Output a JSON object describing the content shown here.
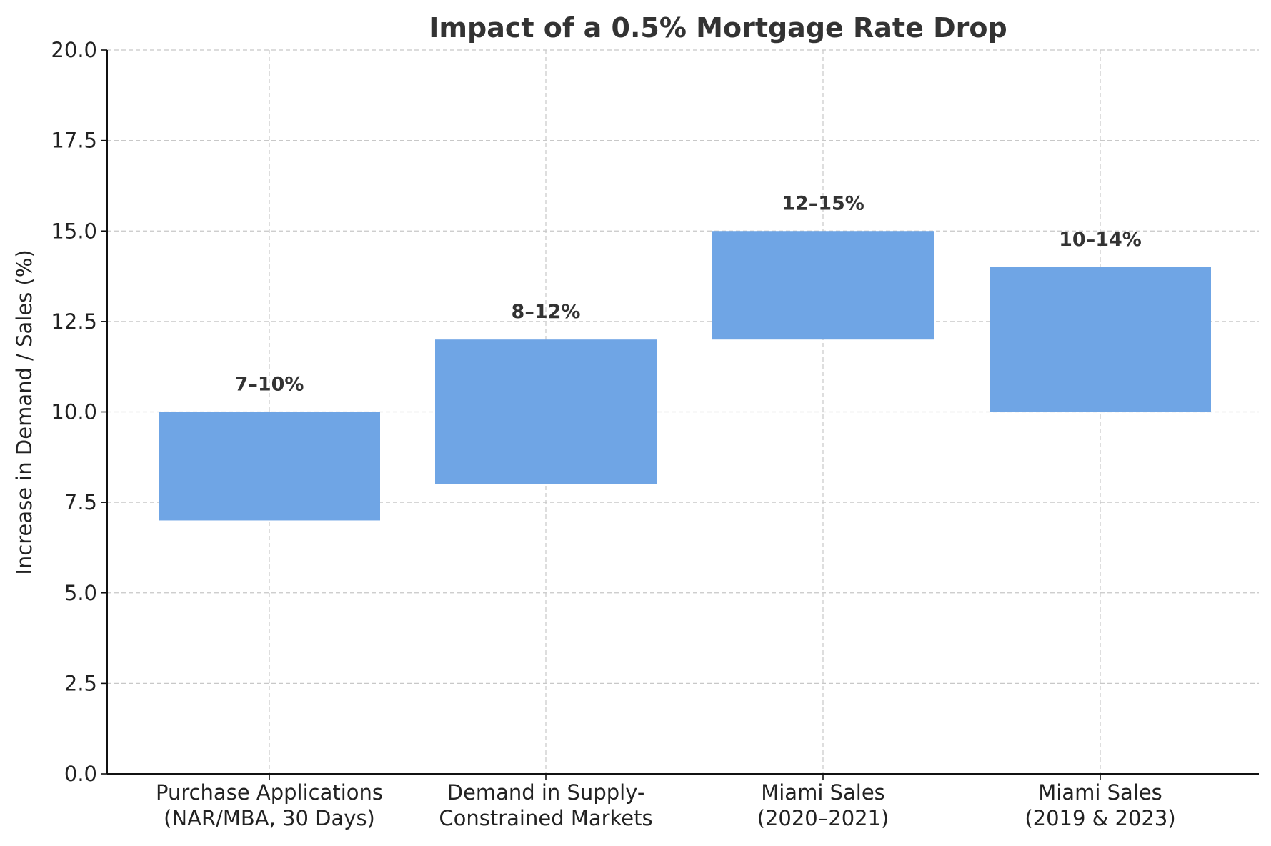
{
  "chart_data": {
    "type": "floating-bar",
    "title": "Impact of a 0.5% Mortgage Rate Drop",
    "xlabel": "",
    "ylabel": "Increase in Demand / Sales (%)",
    "ylim": [
      0,
      20
    ],
    "yticks": [
      0.0,
      2.5,
      5.0,
      7.5,
      10.0,
      12.5,
      15.0,
      17.5,
      20.0
    ],
    "ytick_labels": [
      "0.0",
      "2.5",
      "5.0",
      "7.5",
      "10.0",
      "12.5",
      "15.0",
      "17.5",
      "20.0"
    ],
    "grid": true,
    "bar_color": "#6fa5e5",
    "categories": [
      {
        "label_lines": [
          "Purchase Applications",
          "(NAR/MBA, 30 Days)"
        ],
        "low": 7,
        "high": 10,
        "data_label": "7–10%"
      },
      {
        "label_lines": [
          "Demand in Supply-",
          "Constrained Markets"
        ],
        "low": 8,
        "high": 12,
        "data_label": "8–12%"
      },
      {
        "label_lines": [
          "Miami Sales",
          "(2020–2021)"
        ],
        "low": 12,
        "high": 15,
        "data_label": "12–15%"
      },
      {
        "label_lines": [
          "Miami Sales",
          "(2019 & 2023)"
        ],
        "low": 10,
        "high": 14,
        "data_label": "10–14%"
      }
    ]
  }
}
